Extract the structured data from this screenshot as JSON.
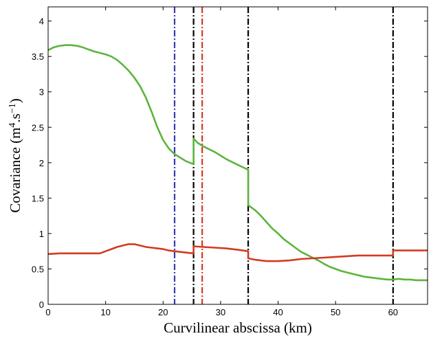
{
  "chart_data": {
    "type": "line",
    "xlabel": "Curvilinear abscissa (km)",
    "ylabel_main": "Covariance (m",
    "ylabel_sup1": "4",
    "ylabel_mid": ".s",
    "ylabel_sup2": "−1",
    "ylabel_end": ")",
    "xlim": [
      0,
      66
    ],
    "ylim": [
      0,
      4.2
    ],
    "xticks": [
      0,
      10,
      20,
      30,
      40,
      50,
      60
    ],
    "xtick_labels": [
      "0",
      "10",
      "20",
      "30",
      "40",
      "50",
      "60"
    ],
    "yticks": [
      0,
      0.5,
      1,
      1.5,
      2,
      2.5,
      3,
      3.5,
      4
    ],
    "ytick_labels": [
      "0",
      "0.5",
      "1",
      "1.5",
      "2",
      "2.5",
      "3",
      "3.5",
      "4"
    ],
    "series": [
      {
        "color": "#5cb43c",
        "points": [
          [
            0,
            3.59
          ],
          [
            1,
            3.63
          ],
          [
            2,
            3.65
          ],
          [
            3,
            3.66
          ],
          [
            4,
            3.66
          ],
          [
            5,
            3.65
          ],
          [
            6,
            3.63
          ],
          [
            7,
            3.6
          ],
          [
            8,
            3.57
          ],
          [
            9,
            3.55
          ],
          [
            10,
            3.53
          ],
          [
            11,
            3.5
          ],
          [
            12,
            3.45
          ],
          [
            13,
            3.38
          ],
          [
            14,
            3.3
          ],
          [
            15,
            3.2
          ],
          [
            16,
            3.08
          ],
          [
            17,
            2.92
          ],
          [
            18,
            2.72
          ],
          [
            19,
            2.5
          ],
          [
            20,
            2.32
          ],
          [
            21,
            2.2
          ],
          [
            22,
            2.12
          ],
          [
            23,
            2.07
          ],
          [
            24,
            2.02
          ],
          [
            25.3,
            1.98
          ],
          [
            25.3,
            2.34
          ],
          [
            26,
            2.28
          ],
          [
            27,
            2.23
          ],
          [
            28,
            2.19
          ],
          [
            29,
            2.15
          ],
          [
            30,
            2.1
          ],
          [
            31,
            2.05
          ],
          [
            32,
            2.01
          ],
          [
            33,
            1.97
          ],
          [
            34,
            1.93
          ],
          [
            34.8,
            1.9
          ],
          [
            34.8,
            1.4
          ],
          [
            36,
            1.33
          ],
          [
            37,
            1.25
          ],
          [
            38,
            1.16
          ],
          [
            39,
            1.07
          ],
          [
            40,
            1.0
          ],
          [
            41,
            0.92
          ],
          [
            42,
            0.86
          ],
          [
            43,
            0.8
          ],
          [
            44,
            0.74
          ],
          [
            45,
            0.7
          ],
          [
            46,
            0.66
          ],
          [
            47,
            0.62
          ],
          [
            48,
            0.57
          ],
          [
            49,
            0.53
          ],
          [
            50,
            0.5
          ],
          [
            51,
            0.47
          ],
          [
            52,
            0.45
          ],
          [
            53,
            0.43
          ],
          [
            54,
            0.41
          ],
          [
            55,
            0.39
          ],
          [
            56,
            0.38
          ],
          [
            57,
            0.37
          ],
          [
            58,
            0.36
          ],
          [
            59,
            0.35
          ],
          [
            60,
            0.35
          ],
          [
            61,
            0.36
          ],
          [
            62,
            0.35
          ],
          [
            63,
            0.35
          ],
          [
            64,
            0.34
          ],
          [
            65,
            0.34
          ],
          [
            66,
            0.34
          ]
        ]
      },
      {
        "color": "#d23a20",
        "points": [
          [
            0,
            0.71
          ],
          [
            2,
            0.72
          ],
          [
            4,
            0.72
          ],
          [
            6,
            0.72
          ],
          [
            8,
            0.72
          ],
          [
            9,
            0.72
          ],
          [
            10,
            0.75
          ],
          [
            11,
            0.78
          ],
          [
            12,
            0.81
          ],
          [
            13,
            0.83
          ],
          [
            14,
            0.85
          ],
          [
            15,
            0.85
          ],
          [
            16,
            0.83
          ],
          [
            17,
            0.81
          ],
          [
            18,
            0.8
          ],
          [
            19,
            0.79
          ],
          [
            20,
            0.78
          ],
          [
            21,
            0.76
          ],
          [
            22,
            0.75
          ],
          [
            23,
            0.74
          ],
          [
            24,
            0.73
          ],
          [
            25.3,
            0.72
          ],
          [
            25.3,
            0.82
          ],
          [
            27,
            0.81
          ],
          [
            29,
            0.8
          ],
          [
            31,
            0.79
          ],
          [
            33,
            0.77
          ],
          [
            34.8,
            0.75
          ],
          [
            34.8,
            0.65
          ],
          [
            36,
            0.63
          ],
          [
            38,
            0.61
          ],
          [
            40,
            0.61
          ],
          [
            42,
            0.62
          ],
          [
            44,
            0.64
          ],
          [
            46,
            0.65
          ],
          [
            48,
            0.66
          ],
          [
            50,
            0.67
          ],
          [
            52,
            0.68
          ],
          [
            54,
            0.69
          ],
          [
            56,
            0.69
          ],
          [
            58,
            0.69
          ],
          [
            60,
            0.69
          ],
          [
            60,
            0.76
          ],
          [
            62,
            0.76
          ],
          [
            64,
            0.76
          ],
          [
            66,
            0.76
          ]
        ]
      }
    ],
    "vlines": [
      {
        "x": 22,
        "color": "#3a3ab0"
      },
      {
        "x": 25.3,
        "color": "#000000"
      },
      {
        "x": 26.8,
        "color": "#d23a20"
      },
      {
        "x": 34.8,
        "color": "#000000"
      },
      {
        "x": 60,
        "color": "#000000"
      }
    ]
  }
}
